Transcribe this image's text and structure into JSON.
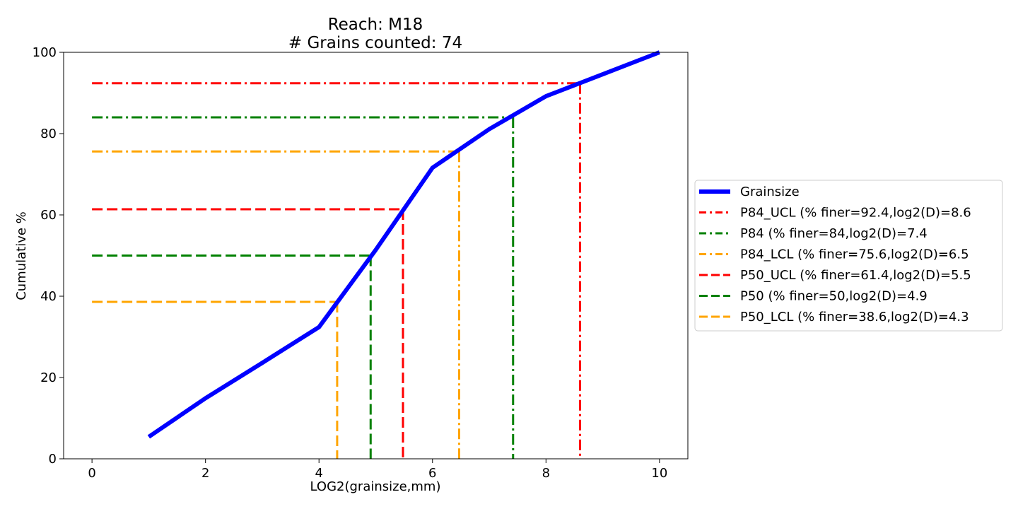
{
  "chart_data": {
    "type": "line",
    "title": "Reach: M18",
    "subtitle": "# Grains counted: 74",
    "xlabel": "LOG2(grainsize,mm)",
    "ylabel": "Cumulative %",
    "xlim": [
      -0.5,
      10.5
    ],
    "ylim": [
      0,
      100
    ],
    "xticks": [
      0,
      2,
      4,
      6,
      8,
      10
    ],
    "yticks": [
      0,
      20,
      40,
      60,
      80,
      100
    ],
    "grid": false,
    "legend_position": "right",
    "series": [
      {
        "name": "Grainsize",
        "color": "#0000ff",
        "style": "solid",
        "x": [
          1,
          2,
          3,
          4,
          5,
          6,
          7,
          8,
          9,
          10
        ],
        "y": [
          5.4,
          14.9,
          23.6,
          32.4,
          51.4,
          71.6,
          81.1,
          89.2,
          94.6,
          100
        ]
      }
    ],
    "percentiles": [
      {
        "name": "P84_UCL (% finer=92.4,log2(D)=8.6",
        "percent": 92.4,
        "log2d": 8.6,
        "color": "#ff0000",
        "style": "dashdot"
      },
      {
        "name": "P84 (% finer=84,log2(D)=7.4",
        "percent": 84,
        "log2d": 7.42,
        "color": "#008000",
        "style": "dashdot"
      },
      {
        "name": "P84_LCL (% finer=75.6,log2(D)=6.5",
        "percent": 75.6,
        "log2d": 6.47,
        "color": "#ffa500",
        "style": "dashdot"
      },
      {
        "name": "P50_UCL (% finer=61.4,log2(D)=5.5",
        "percent": 61.4,
        "log2d": 5.48,
        "color": "#ff0000",
        "style": "dashed"
      },
      {
        "name": "P50 (% finer=50,log2(D)=4.9",
        "percent": 50,
        "log2d": 4.91,
        "color": "#008000",
        "style": "dashed"
      },
      {
        "name": "P50_LCL (% finer=38.6,log2(D)=4.3",
        "percent": 38.6,
        "log2d": 4.32,
        "color": "#ffa500",
        "style": "dashed"
      }
    ]
  }
}
